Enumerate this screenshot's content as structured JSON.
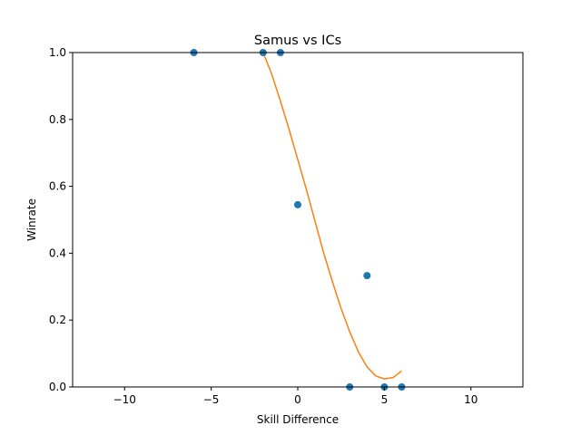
{
  "chart_data": {
    "type": "scatter",
    "title": "Samus vs ICs",
    "xlabel": "Skill Difference",
    "ylabel": "Winrate",
    "xlim": [
      -13,
      13
    ],
    "ylim": [
      0,
      1
    ],
    "xticks": [
      -10,
      -5,
      0,
      5,
      10
    ],
    "xtick_labels": [
      "−10",
      "−5",
      "0",
      "5",
      "10"
    ],
    "yticks": [
      0,
      0.2,
      0.4,
      0.6,
      0.8,
      1.0
    ],
    "ytick_labels": [
      "0.0",
      "0.2",
      "0.4",
      "0.6",
      "0.8",
      "1.0"
    ],
    "grid": false,
    "legend": "none",
    "series": [
      {
        "type": "scatter",
        "color": "#1f77b4",
        "x": [
          -6,
          -2,
          -1,
          0,
          3,
          4,
          5,
          6
        ],
        "y": [
          1.0,
          1.0,
          1.0,
          0.545,
          0.0,
          0.333,
          0.0,
          0.0
        ]
      },
      {
        "type": "line",
        "color": "#ff7f0e",
        "x": [
          -2.0,
          -1.5,
          -1.0,
          -0.5,
          0.0,
          0.5,
          1.0,
          1.5,
          2.0,
          2.5,
          3.0,
          3.5,
          4.0,
          4.5,
          5.0,
          5.5,
          6.0
        ],
        "y": [
          1.0,
          0.935,
          0.855,
          0.77,
          0.68,
          0.59,
          0.495,
          0.4,
          0.315,
          0.235,
          0.165,
          0.105,
          0.06,
          0.033,
          0.024,
          0.028,
          0.048
        ]
      }
    ]
  }
}
